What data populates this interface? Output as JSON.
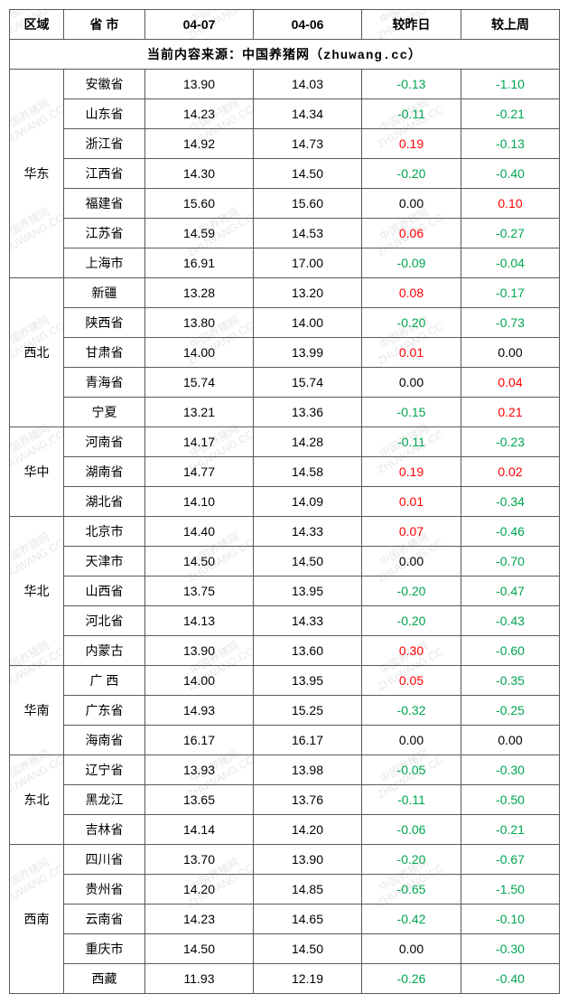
{
  "colors": {
    "border": "#595959",
    "text": "#000000",
    "negative": "#00a650",
    "positive": "#ff0000",
    "watermark": "rgba(120,120,120,0.18)",
    "background": "#ffffff"
  },
  "watermark": {
    "line1": "中国养猪网",
    "line2": "ZHUWANG.CC"
  },
  "header": {
    "region": "区域",
    "province": "省 市",
    "date1": "04-07",
    "date2": "04-06",
    "vs_yesterday": "较昨日",
    "vs_lastweek": "较上周"
  },
  "source_line": "当前内容来源：中国养猪网（zhuwang.cc）",
  "regions": [
    {
      "name": "华东",
      "rows": [
        {
          "province": "安徽省",
          "d1": "13.90",
          "d2": "14.03",
          "c1": "-0.13",
          "c2": "-1.10"
        },
        {
          "province": "山东省",
          "d1": "14.23",
          "d2": "14.34",
          "c1": "-0.11",
          "c2": "-0.21"
        },
        {
          "province": "浙江省",
          "d1": "14.92",
          "d2": "14.73",
          "c1": "0.19",
          "c2": "-0.13"
        },
        {
          "province": "江西省",
          "d1": "14.30",
          "d2": "14.50",
          "c1": "-0.20",
          "c2": "-0.40"
        },
        {
          "province": "福建省",
          "d1": "15.60",
          "d2": "15.60",
          "c1": "0.00",
          "c2": "0.10"
        },
        {
          "province": "江苏省",
          "d1": "14.59",
          "d2": "14.53",
          "c1": "0.06",
          "c2": "-0.27"
        },
        {
          "province": "上海市",
          "d1": "16.91",
          "d2": "17.00",
          "c1": "-0.09",
          "c2": "-0.04"
        }
      ]
    },
    {
      "name": "西北",
      "rows": [
        {
          "province": "新疆",
          "d1": "13.28",
          "d2": "13.20",
          "c1": "0.08",
          "c2": "-0.17"
        },
        {
          "province": "陕西省",
          "d1": "13.80",
          "d2": "14.00",
          "c1": "-0.20",
          "c2": "-0.73"
        },
        {
          "province": "甘肃省",
          "d1": "14.00",
          "d2": "13.99",
          "c1": "0.01",
          "c2": "0.00"
        },
        {
          "province": "青海省",
          "d1": "15.74",
          "d2": "15.74",
          "c1": "0.00",
          "c2": "0.04"
        },
        {
          "province": "宁夏",
          "d1": "13.21",
          "d2": "13.36",
          "c1": "-0.15",
          "c2": "0.21"
        }
      ]
    },
    {
      "name": "华中",
      "rows": [
        {
          "province": "河南省",
          "d1": "14.17",
          "d2": "14.28",
          "c1": "-0.11",
          "c2": "-0.23"
        },
        {
          "province": "湖南省",
          "d1": "14.77",
          "d2": "14.58",
          "c1": "0.19",
          "c2": "0.02"
        },
        {
          "province": "湖北省",
          "d1": "14.10",
          "d2": "14.09",
          "c1": "0.01",
          "c2": "-0.34"
        }
      ]
    },
    {
      "name": "华北",
      "rows": [
        {
          "province": "北京市",
          "d1": "14.40",
          "d2": "14.33",
          "c1": "0.07",
          "c2": "-0.46"
        },
        {
          "province": "天津市",
          "d1": "14.50",
          "d2": "14.50",
          "c1": "0.00",
          "c2": "-0.70"
        },
        {
          "province": "山西省",
          "d1": "13.75",
          "d2": "13.95",
          "c1": "-0.20",
          "c2": "-0.47"
        },
        {
          "province": "河北省",
          "d1": "14.13",
          "d2": "14.33",
          "c1": "-0.20",
          "c2": "-0.43"
        },
        {
          "province": "内蒙古",
          "d1": "13.90",
          "d2": "13.60",
          "c1": "0.30",
          "c2": "-0.60"
        }
      ]
    },
    {
      "name": "华南",
      "rows": [
        {
          "province": "广 西",
          "d1": "14.00",
          "d2": "13.95",
          "c1": "0.05",
          "c2": "-0.35"
        },
        {
          "province": "广东省",
          "d1": "14.93",
          "d2": "15.25",
          "c1": "-0.32",
          "c2": "-0.25"
        },
        {
          "province": "海南省",
          "d1": "16.17",
          "d2": "16.17",
          "c1": "0.00",
          "c2": "0.00"
        }
      ]
    },
    {
      "name": "东北",
      "rows": [
        {
          "province": "辽宁省",
          "d1": "13.93",
          "d2": "13.98",
          "c1": "-0.05",
          "c2": "-0.30"
        },
        {
          "province": "黑龙江",
          "d1": "13.65",
          "d2": "13.76",
          "c1": "-0.11",
          "c2": "-0.50"
        },
        {
          "province": "吉林省",
          "d1": "14.14",
          "d2": "14.20",
          "c1": "-0.06",
          "c2": "-0.21"
        }
      ]
    },
    {
      "name": "西南",
      "rows": [
        {
          "province": "四川省",
          "d1": "13.70",
          "d2": "13.90",
          "c1": "-0.20",
          "c2": "-0.67"
        },
        {
          "province": "贵州省",
          "d1": "14.20",
          "d2": "14.85",
          "c1": "-0.65",
          "c2": "-1.50"
        },
        {
          "province": "云南省",
          "d1": "14.23",
          "d2": "14.65",
          "c1": "-0.42",
          "c2": "-0.10"
        },
        {
          "province": "重庆市",
          "d1": "14.50",
          "d2": "14.50",
          "c1": "0.00",
          "c2": "-0.30"
        },
        {
          "province": "西藏",
          "d1": "11.93",
          "d2": "12.19",
          "c1": "-0.26",
          "c2": "-0.40"
        }
      ]
    }
  ]
}
